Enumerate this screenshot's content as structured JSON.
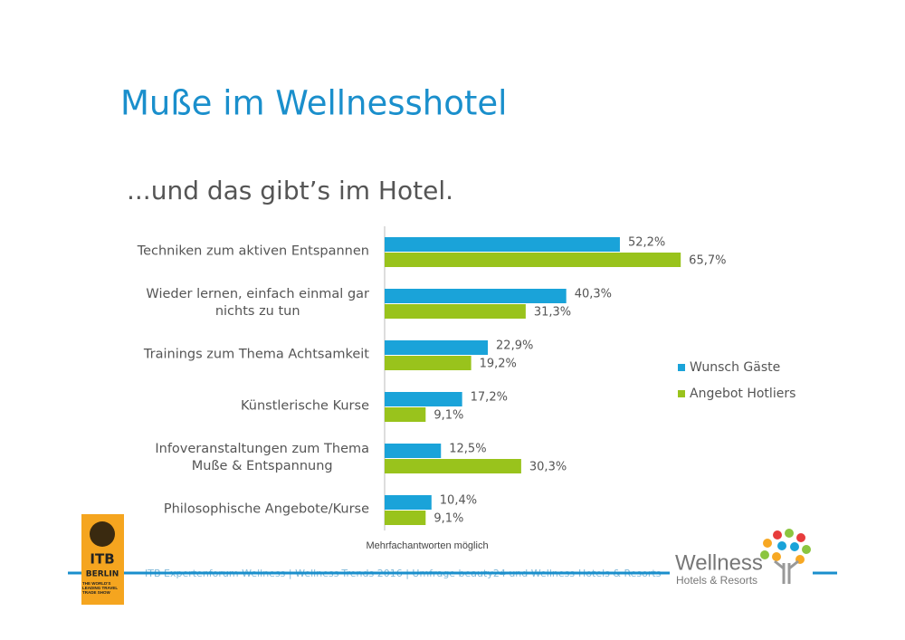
{
  "chart_data": {
    "type": "barh",
    "title": "Muße im Wellnesshotel",
    "subtitle": "...und das gibt’s im Hotel.",
    "note": "Mehrfachantworten möglich",
    "categories": [
      "Techniken zum aktiven Entspannen",
      "Wieder lernen, einfach einmal gar\nnichts zu tun",
      "Trainings zum Thema Achtsamkeit",
      "Künstlerische Kurse",
      "Infoveranstaltungen zum Thema\nMuße & Entspannung",
      "Philosophische Angebote/Kurse"
    ],
    "series": [
      {
        "name": "Wunsch Gäste",
        "color": "#1aa3d9",
        "values": [
          52.2,
          40.3,
          22.9,
          17.2,
          12.5,
          10.4
        ],
        "value_labels": [
          "52,2%",
          "40,3%",
          "22,9%",
          "17,2%",
          "12,5%",
          "10,4%"
        ]
      },
      {
        "name": "Angebot Hotliers",
        "color": "#99c31c",
        "values": [
          65.7,
          31.3,
          19.2,
          9.1,
          30.3,
          9.1
        ],
        "value_labels": [
          "65,7%",
          "31,3%",
          "19,2%",
          "9,1%",
          "30,3%",
          "9,1%"
        ]
      }
    ],
    "xlim": [
      0,
      100
    ],
    "legend": "right"
  },
  "footer": "ITB Expertenforum Wellness | Wellness-Trends 2016 | Umfrage beauty24 und Wellness-Hotels & Resorts",
  "logos": {
    "itb": {
      "name": "ITB",
      "city": "BERLIN",
      "tagline": "THE WORLD'S LEADING TRAVEL TRADE SHOW"
    },
    "wellness": {
      "name": "Wellness",
      "sub": "Hotels & Resorts"
    }
  }
}
